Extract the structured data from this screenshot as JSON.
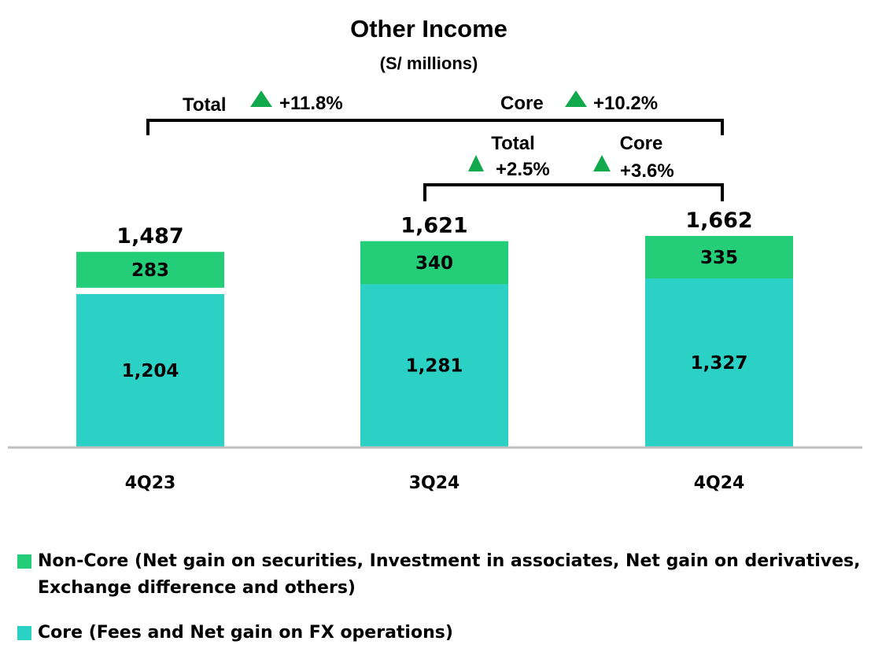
{
  "colors": {
    "core": "#2cd1c6",
    "noncore": "#24cd78",
    "arrow": "#12a94d",
    "axis": "#bfbfbf",
    "text": "#000000"
  },
  "chart_data": {
    "type": "bar",
    "stacked": true,
    "title": "Other Income",
    "subtitle": "(S/ millions)",
    "categories": [
      "4Q23",
      "3Q24",
      "4Q24"
    ],
    "series": [
      {
        "name": "Core (Fees and Net gain on FX operations)",
        "values": [
          1204,
          1281,
          1327
        ]
      },
      {
        "name": "Non-Core (Net gain on securities, Investment in associates, Net gain on derivatives, Exchange difference and others)",
        "values": [
          283,
          340,
          335
        ]
      }
    ],
    "totals": [
      "1,487",
      "1,621",
      "1,662"
    ],
    "core_labels": [
      "1,204",
      "1,281",
      "1,327"
    ],
    "noncore_labels": [
      "283",
      "340",
      "335"
    ],
    "ylim": [
      0,
      1700
    ],
    "xlabel": "",
    "ylabel": ""
  },
  "annotations": {
    "yoy": {
      "total_label": "Total",
      "total_value": "+11.8%",
      "core_label": "Core",
      "core_value": "+10.2%"
    },
    "qoq": {
      "total_label": "Total",
      "total_value": "+2.5%",
      "core_label": "Core",
      "core_value": "+3.6%"
    }
  },
  "legend": {
    "noncore_line1": "Non-Core (Net gain on securities, Investment in associates, Net gain on derivatives,",
    "noncore_line2": "Exchange difference and others)",
    "core": "Core (Fees and Net gain on FX operations)"
  }
}
